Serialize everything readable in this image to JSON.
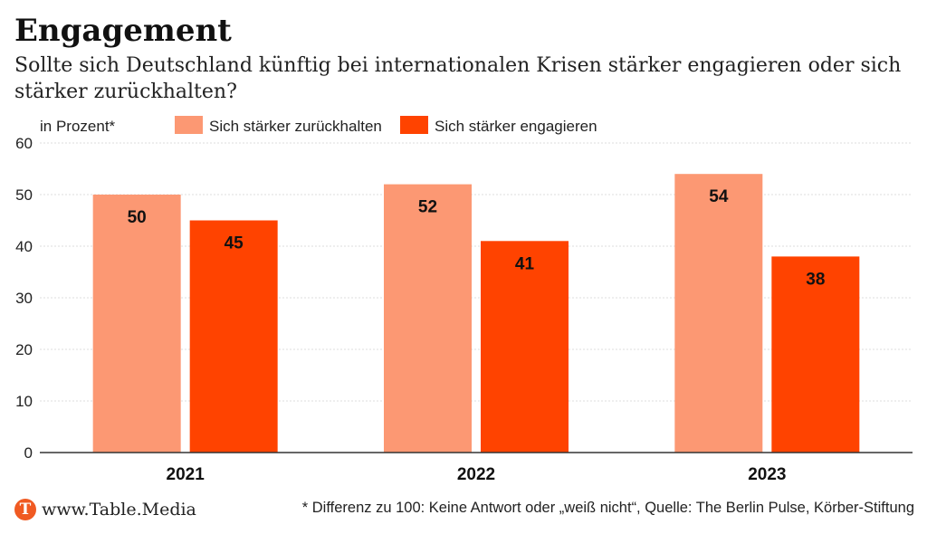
{
  "header": {
    "title": "Engagement",
    "subtitle": "Sollte sich Deutschland künftig bei internationalen Krisen stärker engagieren oder sich stärker zurückhalten?"
  },
  "chart_data": {
    "type": "bar",
    "unit_label": "in Prozent*",
    "categories": [
      "2021",
      "2022",
      "2023"
    ],
    "series": [
      {
        "name": "Sich stärker zurückhalten",
        "values": [
          50,
          52,
          54
        ],
        "color": "#fc9873"
      },
      {
        "name": "Sich stärker engagieren",
        "values": [
          45,
          41,
          38
        ],
        "color": "#ff4300"
      }
    ],
    "ylim": [
      0,
      60
    ],
    "yticks": [
      0,
      10,
      20,
      30,
      40,
      50,
      60
    ],
    "grid": true,
    "legend_position": "top"
  },
  "footer": {
    "logo_letter": "T",
    "site": "www.Table.Media",
    "note": "* Differenz zu 100: Keine Antwort oder „weiß nicht“, Quelle: The Berlin Pulse, Körber-Stiftung"
  }
}
